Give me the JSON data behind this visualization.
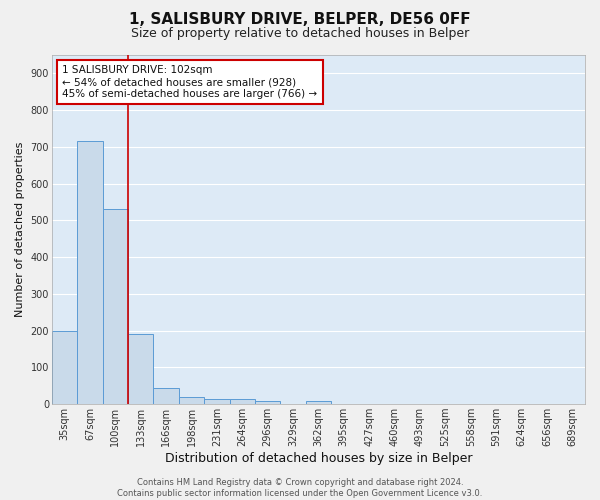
{
  "title": "1, SALISBURY DRIVE, BELPER, DE56 0FF",
  "subtitle": "Size of property relative to detached houses in Belper",
  "xlabel": "Distribution of detached houses by size in Belper",
  "ylabel": "Number of detached properties",
  "categories": [
    "35sqm",
    "67sqm",
    "100sqm",
    "133sqm",
    "166sqm",
    "198sqm",
    "231sqm",
    "264sqm",
    "296sqm",
    "329sqm",
    "362sqm",
    "395sqm",
    "427sqm",
    "460sqm",
    "493sqm",
    "525sqm",
    "558sqm",
    "591sqm",
    "624sqm",
    "656sqm",
    "689sqm"
  ],
  "values": [
    200,
    715,
    530,
    190,
    45,
    20,
    13,
    13,
    8,
    0,
    8,
    0,
    0,
    0,
    0,
    0,
    0,
    0,
    0,
    0,
    0
  ],
  "bar_color": "#c9daea",
  "bar_edge_color": "#5b9bd5",
  "background_color": "#ddeaf6",
  "grid_color": "#ffffff",
  "vline_color": "#cc0000",
  "vline_x_index": 2,
  "annotation_text": "1 SALISBURY DRIVE: 102sqm\n← 54% of detached houses are smaller (928)\n45% of semi-detached houses are larger (766) →",
  "annotation_box_color": "#ffffff",
  "annotation_box_edge": "#cc0000",
  "annotation_fontsize": 7.5,
  "ylim": [
    0,
    950
  ],
  "yticks": [
    0,
    100,
    200,
    300,
    400,
    500,
    600,
    700,
    800,
    900
  ],
  "footer": "Contains HM Land Registry data © Crown copyright and database right 2024.\nContains public sector information licensed under the Open Government Licence v3.0.",
  "title_fontsize": 11,
  "subtitle_fontsize": 9,
  "xlabel_fontsize": 9,
  "ylabel_fontsize": 8,
  "tick_fontsize": 7,
  "fig_bg": "#f0f0f0"
}
